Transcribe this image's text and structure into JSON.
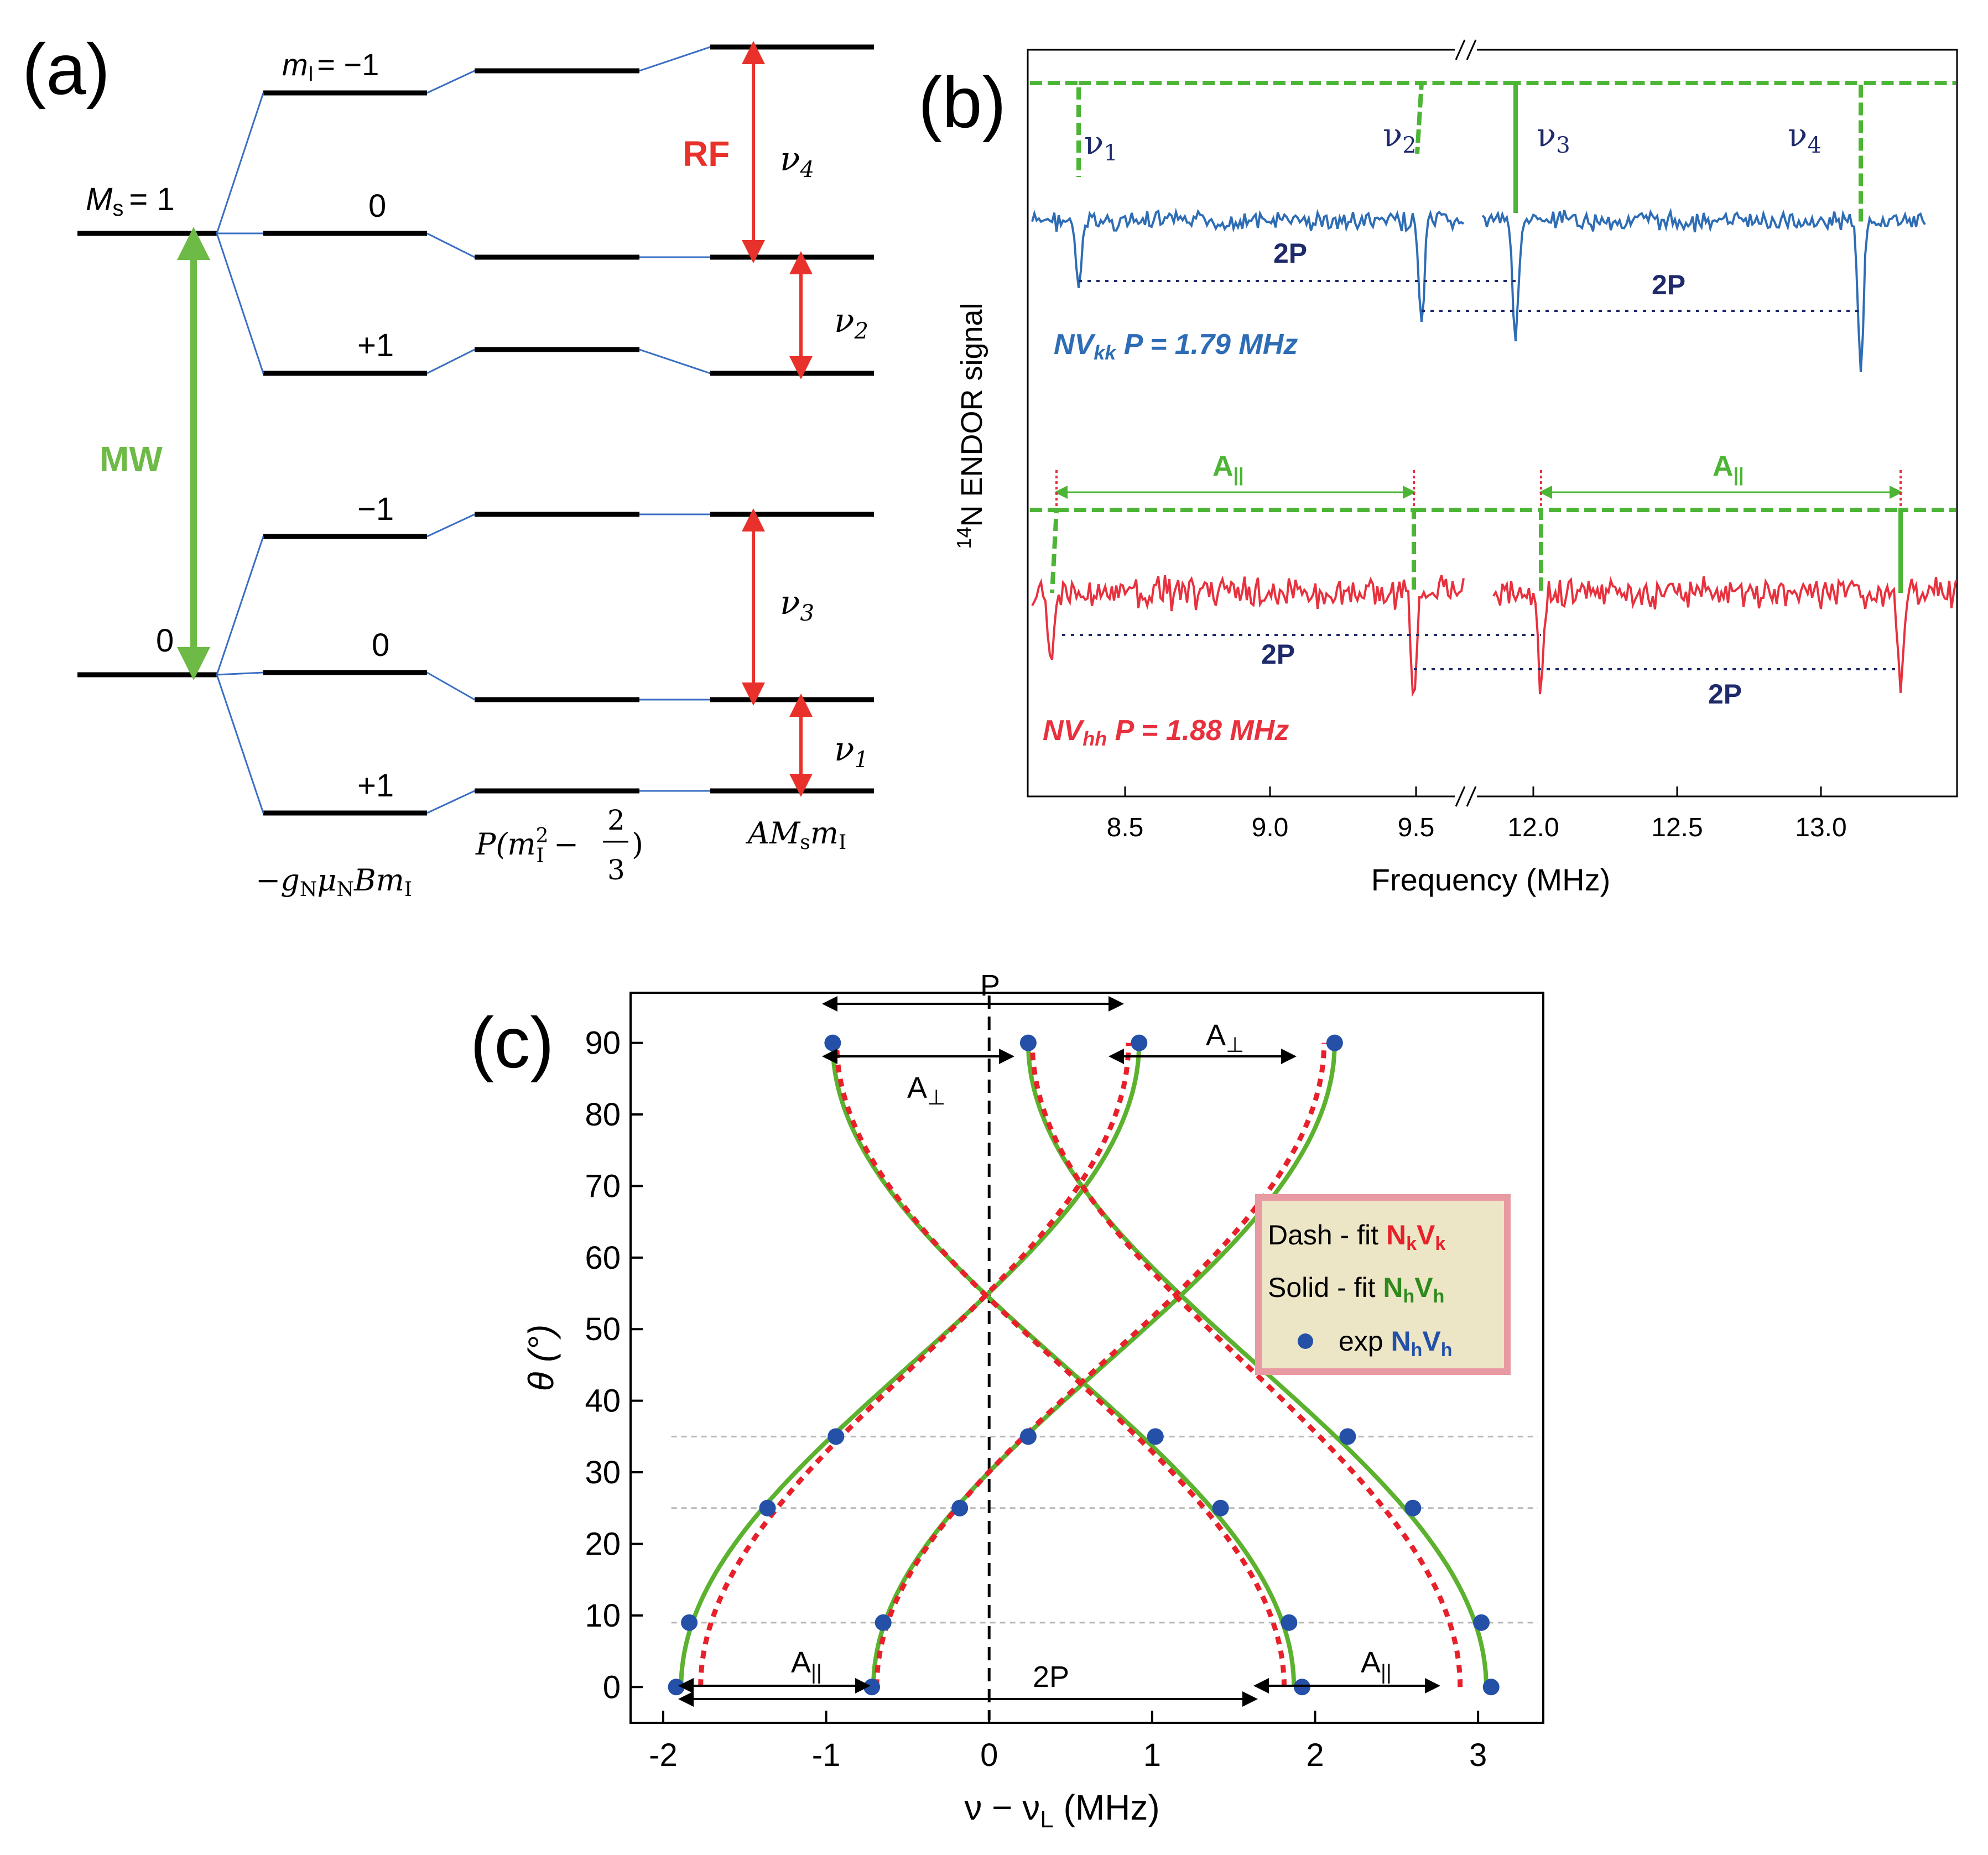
{
  "panel_a": {
    "label": "(a)",
    "ms_upper": "M",
    "ms_upper_sub": "s",
    "ms_upper_val": "= 1",
    "ms_lower": "0",
    "mi_top": "m",
    "mi_top_sub": "I",
    "mi_top_val": "= −1",
    "upper_mi": [
      "0",
      "+1"
    ],
    "lower_mi": [
      "−1",
      "0",
      "+1"
    ],
    "mw": "MW",
    "rf": "RF",
    "nu4": "ν",
    "nu4_sub": "4",
    "nu2": "ν",
    "nu2_sub": "2",
    "nu3": "ν",
    "nu3_sub": "3",
    "nu1": "ν",
    "nu1_sub": "1",
    "term1": "−g",
    "term1_sub1": "N",
    "term1_mu": "μ",
    "term1_sub2": "N",
    "term1_rest": "Bm",
    "term1_sub3": "I",
    "term2_a": "P(m",
    "term2_sub": "I",
    "term2_sup": "2",
    "term2_b": " − ",
    "term2_num": "2",
    "term2_den": "3",
    "term2_c": ")",
    "term3": "AM",
    "term3_sub1": "s",
    "term3_b": "m",
    "term3_sub2": "I",
    "colors": {
      "mw": "#6dbb46",
      "rf": "#e8312a",
      "link": "#3a6fc4"
    }
  },
  "panel_b": {
    "label": "(b)",
    "ylabel_sup": "14",
    "ylabel": "N ENDOR signal",
    "xlabel": "Frequency (MHz)",
    "xticks_left": [
      "8.5",
      "9.0",
      "9.5"
    ],
    "xticks_right": [
      "12.0",
      "12.5",
      "13.0"
    ],
    "nu_labels": [
      "ν",
      "ν",
      "ν",
      "ν"
    ],
    "nu_subs": [
      "1",
      "2",
      "3",
      "4"
    ],
    "blue_2p": [
      "2P",
      "2P"
    ],
    "red_2p": [
      "2P",
      "2P"
    ],
    "nvkk_a": "NV",
    "nvkk_sub": "kk",
    "nvkk_b": " P = 1.79 MHz",
    "nvhh_a": "NV",
    "nvhh_sub": "hh",
    "nvhh_b": " P = 1.88 MHz",
    "a_par": [
      "A",
      "A"
    ],
    "a_par_sub": "||",
    "colors": {
      "blue": "#2e6db5",
      "red": "#e8313e",
      "green": "#4cb535",
      "navy": "#1f2a6b"
    }
  },
  "panel_c": {
    "label": "(c)",
    "ylabel": "θ (°)",
    "xlabel_a": "ν − ν",
    "xlabel_sub": "L",
    "xlabel_b": " (MHz)",
    "ann_p": "P",
    "ann_2p": "2P",
    "ann_a_perp": [
      "A",
      "A"
    ],
    "ann_a_perp_sub": "⊥",
    "ann_a_par": [
      "A",
      "A"
    ],
    "ann_a_par_sub": "||",
    "legend": {
      "dash_a": "Dash - fit ",
      "dash_b": "N",
      "dash_sub1": "k",
      "dash_c": "V",
      "dash_sub2": "k",
      "solid_a": "Solid - fit ",
      "solid_b": "N",
      "solid_sub1": "h",
      "solid_c": "V",
      "solid_sub2": "h",
      "exp_a": "exp ",
      "exp_b": "N",
      "exp_sub1": "h",
      "exp_c": "V",
      "exp_sub2": "h"
    },
    "colors": {
      "solid": "#5cb22e",
      "dash": "#e8202a",
      "points": "#2550a8",
      "legend_bg": "#ece6c6",
      "legend_border": "#e89aa2"
    }
  },
  "chart_data": {
    "type": "line",
    "xlim": [
      -2.2,
      3.4
    ],
    "ylim": [
      -5,
      97
    ],
    "xticks": [
      -2,
      -1,
      0,
      1,
      2,
      3
    ],
    "xticklabels": [
      "-2",
      "-1",
      "0",
      "1",
      "2",
      "3"
    ],
    "yticks": [
      0,
      10,
      20,
      30,
      40,
      50,
      60,
      70,
      80,
      90
    ],
    "yticklabels": [
      "0",
      "10",
      "20",
      "30",
      "40",
      "50",
      "60",
      "70",
      "80",
      "90"
    ],
    "grid_y": [
      9,
      25,
      35
    ],
    "points": [
      [
        -1.92,
        0
      ],
      [
        -0.72,
        0
      ],
      [
        1.92,
        0
      ],
      [
        3.08,
        0
      ],
      [
        -1.84,
        9
      ],
      [
        -0.65,
        9
      ],
      [
        1.84,
        9
      ],
      [
        3.02,
        9
      ],
      [
        -1.36,
        25
      ],
      [
        -0.18,
        25
      ],
      [
        1.42,
        25
      ],
      [
        2.6,
        25
      ],
      [
        -0.94,
        35
      ],
      [
        0.24,
        35
      ],
      [
        1.02,
        35
      ],
      [
        2.2,
        35
      ],
      [
        -0.96,
        90
      ],
      [
        0.24,
        90
      ],
      [
        0.92,
        90
      ],
      [
        2.12,
        90
      ]
    ]
  }
}
